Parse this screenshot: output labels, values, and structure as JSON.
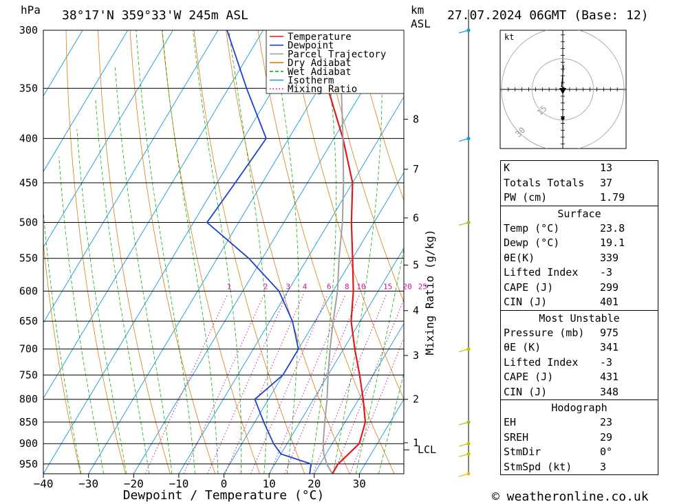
{
  "header": {
    "location": "38°17'N  359°33'W  245m  ASL",
    "datetime": "27.07.2024  06GMT  (Base: 12)",
    "hpa_label": "hPa",
    "km_label": "km",
    "asl_label": "ASL"
  },
  "footer": {
    "credit": "© weatheronline.co.uk"
  },
  "chart_data": {
    "type": "line",
    "title": "",
    "xlabel": "Dewpoint / Temperature (°C)",
    "ylabel": "hPa",
    "right_ylabel": "Mixing Ratio (g/kg)",
    "y_scale": "log",
    "y_range_hpa": [
      975,
      300
    ],
    "skew": true,
    "x_ticks": [
      -40,
      -30,
      -20,
      -10,
      0,
      10,
      20,
      30
    ],
    "pressure_levels": [
      300,
      350,
      400,
      450,
      500,
      550,
      600,
      650,
      700,
      750,
      800,
      850,
      900,
      950
    ],
    "km_ticks": [
      {
        "label": "1",
        "p": 898
      },
      {
        "label": "2",
        "p": 800
      },
      {
        "label": "3",
        "p": 712
      },
      {
        "label": "4",
        "p": 632
      },
      {
        "label": "5",
        "p": 560
      },
      {
        "label": "6",
        "p": 494
      },
      {
        "label": "7",
        "p": 434
      },
      {
        "label": "8",
        "p": 380
      }
    ],
    "lcl": {
      "label": "LCL",
      "p": 915
    },
    "mixing_ratio_labels": [
      "1",
      "2",
      "3",
      "4",
      "6",
      "8",
      "10",
      "15",
      "20",
      "25"
    ],
    "legend": {
      "placement": "top-left",
      "entries": [
        {
          "label": "Temperature",
          "color": "#e01818"
        },
        {
          "label": "Dewpoint",
          "color": "#1b3fd6"
        },
        {
          "label": "Parcel Trajectory",
          "color": "#a0a0a0"
        },
        {
          "label": "Dry Adiabat",
          "color": "#e07a10"
        },
        {
          "label": "Wet Adiabat",
          "color": "#10b010"
        },
        {
          "label": "Isotherm",
          "color": "#109ad8"
        },
        {
          "label": "Mixing Ratio",
          "color": "#d010a0"
        }
      ]
    },
    "series": [
      {
        "name": "Temperature",
        "color": "#e01818",
        "points": [
          [
            975,
            24
          ],
          [
            950,
            24
          ],
          [
            925,
            25
          ],
          [
            900,
            26
          ],
          [
            850,
            24.5
          ],
          [
            800,
            21
          ],
          [
            750,
            17
          ],
          [
            700,
            12.5
          ],
          [
            650,
            8
          ],
          [
            600,
            4.5
          ],
          [
            550,
            0
          ],
          [
            500,
            -5
          ],
          [
            450,
            -10
          ],
          [
            400,
            -18
          ],
          [
            350,
            -28
          ],
          [
            300,
            -39
          ]
        ]
      },
      {
        "name": "Dewpoint",
        "color": "#1b3fd6",
        "points": [
          [
            975,
            19
          ],
          [
            950,
            18
          ],
          [
            925,
            10
          ],
          [
            900,
            7
          ],
          [
            850,
            2
          ],
          [
            800,
            -3
          ],
          [
            750,
            0
          ],
          [
            700,
            0
          ],
          [
            650,
            -5
          ],
          [
            600,
            -12
          ],
          [
            550,
            -23
          ],
          [
            500,
            -37
          ],
          [
            450,
            -36
          ],
          [
            400,
            -35
          ],
          [
            350,
            -46
          ],
          [
            300,
            -58
          ]
        ]
      },
      {
        "name": "Parcel Trajectory",
        "color": "#a0a0a0",
        "points": [
          [
            975,
            24
          ],
          [
            950,
            21.5
          ],
          [
            925,
            19.5
          ],
          [
            900,
            18
          ],
          [
            850,
            15.5
          ],
          [
            800,
            13
          ],
          [
            750,
            10
          ],
          [
            700,
            7
          ],
          [
            650,
            4
          ],
          [
            600,
            1
          ],
          [
            550,
            -3
          ],
          [
            500,
            -7
          ],
          [
            450,
            -12
          ],
          [
            400,
            -18
          ],
          [
            350,
            -25
          ],
          [
            300,
            -35
          ]
        ]
      }
    ],
    "wind_barbs": [
      {
        "p": 300,
        "color": "#109ad8"
      },
      {
        "p": 400,
        "color": "#109ad8"
      },
      {
        "p": 500,
        "color": "#a0c020"
      },
      {
        "p": 700,
        "color": "#c8c000"
      },
      {
        "p": 850,
        "color": "#a0c020"
      },
      {
        "p": 900,
        "color": "#c8c000"
      },
      {
        "p": 925,
        "color": "#c8c000"
      },
      {
        "p": 975,
        "color": "#f0c000"
      }
    ],
    "hodograph": {
      "unit_label": "kt",
      "rings": [
        "15",
        "30",
        "45"
      ],
      "trace": [
        [
          0,
          0
        ],
        [
          0.3,
          -1
        ],
        [
          1.5,
          -2.5
        ],
        [
          2,
          -4
        ],
        [
          0,
          -6.5
        ],
        [
          -2,
          -8
        ],
        [
          -1,
          -12
        ],
        [
          0,
          -17
        ],
        [
          1,
          -22
        ]
      ]
    }
  },
  "indices": {
    "general": [
      {
        "label": "K",
        "value": "13"
      },
      {
        "label": "Totals Totals",
        "value": "37"
      },
      {
        "label": "PW (cm)",
        "value": "1.79"
      }
    ],
    "surface": {
      "title": "Surface",
      "rows": [
        {
          "label": "Temp (°C)",
          "value": "23.8"
        },
        {
          "label": "Dewp (°C)",
          "value": "19.1"
        },
        {
          "label": "θE(K)",
          "value": "339"
        },
        {
          "label": "Lifted Index",
          "value": "-3"
        },
        {
          "label": "CAPE (J)",
          "value": "299"
        },
        {
          "label": "CIN (J)",
          "value": "401"
        }
      ]
    },
    "most_unstable": {
      "title": "Most Unstable",
      "rows": [
        {
          "label": "Pressure (mb)",
          "value": "975"
        },
        {
          "label": "θE (K)",
          "value": "341"
        },
        {
          "label": "Lifted Index",
          "value": "-3"
        },
        {
          "label": "CAPE (J)",
          "value": "431"
        },
        {
          "label": "CIN (J)",
          "value": "348"
        }
      ]
    },
    "hodograph": {
      "title": "Hodograph",
      "rows": [
        {
          "label": "EH",
          "value": "23"
        },
        {
          "label": "SREH",
          "value": "29"
        },
        {
          "label": "StmDir",
          "value": "0°"
        },
        {
          "label": "StmSpd (kt)",
          "value": "3"
        }
      ]
    }
  }
}
